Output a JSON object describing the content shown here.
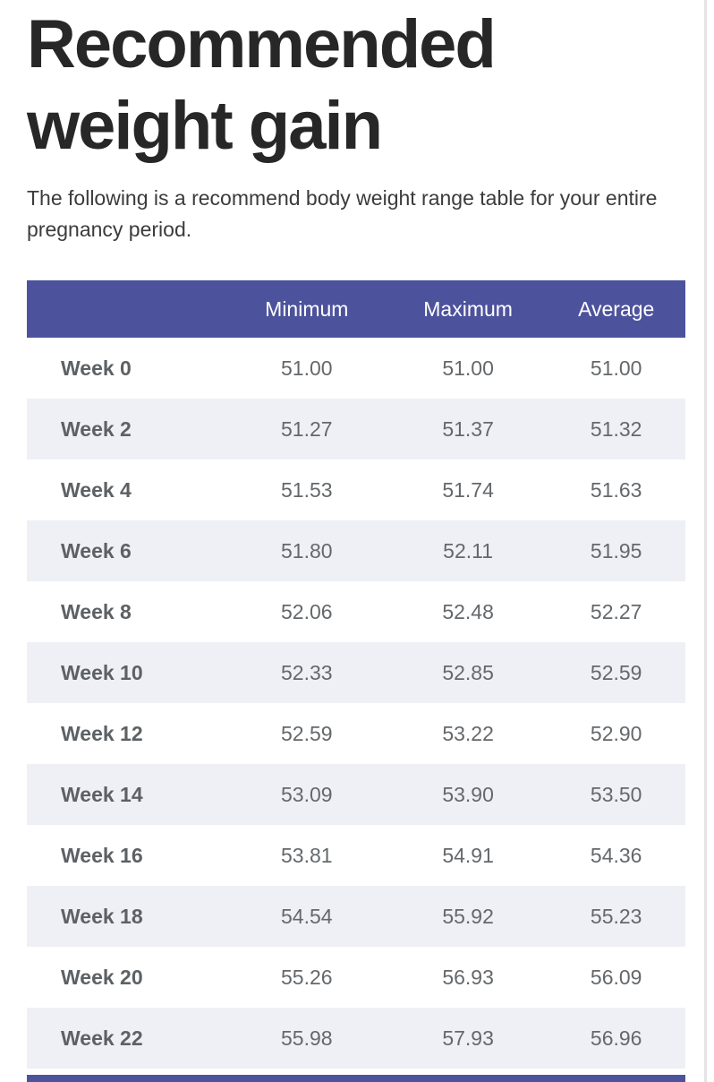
{
  "page": {
    "title": "Recommended weight gain",
    "description": "The following is a recommend body weight range table for your entire pregnancy period."
  },
  "table": {
    "columns": [
      "",
      "Minimum",
      "Maximum",
      "Average"
    ],
    "rows": [
      {
        "week": "Week 0",
        "min": "51.00",
        "max": "51.00",
        "avg": "51.00"
      },
      {
        "week": "Week 2",
        "min": "51.27",
        "max": "51.37",
        "avg": "51.32"
      },
      {
        "week": "Week 4",
        "min": "51.53",
        "max": "51.74",
        "avg": "51.63"
      },
      {
        "week": "Week 6",
        "min": "51.80",
        "max": "52.11",
        "avg": "51.95"
      },
      {
        "week": "Week 8",
        "min": "52.06",
        "max": "52.48",
        "avg": "52.27"
      },
      {
        "week": "Week 10",
        "min": "52.33",
        "max": "52.85",
        "avg": "52.59"
      },
      {
        "week": "Week 12",
        "min": "52.59",
        "max": "53.22",
        "avg": "52.90"
      },
      {
        "week": "Week 14",
        "min": "53.09",
        "max": "53.90",
        "avg": "53.50"
      },
      {
        "week": "Week 16",
        "min": "53.81",
        "max": "54.91",
        "avg": "54.36"
      },
      {
        "week": "Week 18",
        "min": "54.54",
        "max": "55.92",
        "avg": "55.23"
      },
      {
        "week": "Week 20",
        "min": "55.26",
        "max": "56.93",
        "avg": "56.09"
      },
      {
        "week": "Week 22",
        "min": "55.98",
        "max": "57.93",
        "avg": "56.96"
      }
    ]
  },
  "colors": {
    "table_header_bg": "#4d529c",
    "table_header_text": "#ffffff",
    "row_alt_bg": "#eef0f6",
    "cell_text": "#64686b",
    "heading_text": "#272727"
  }
}
